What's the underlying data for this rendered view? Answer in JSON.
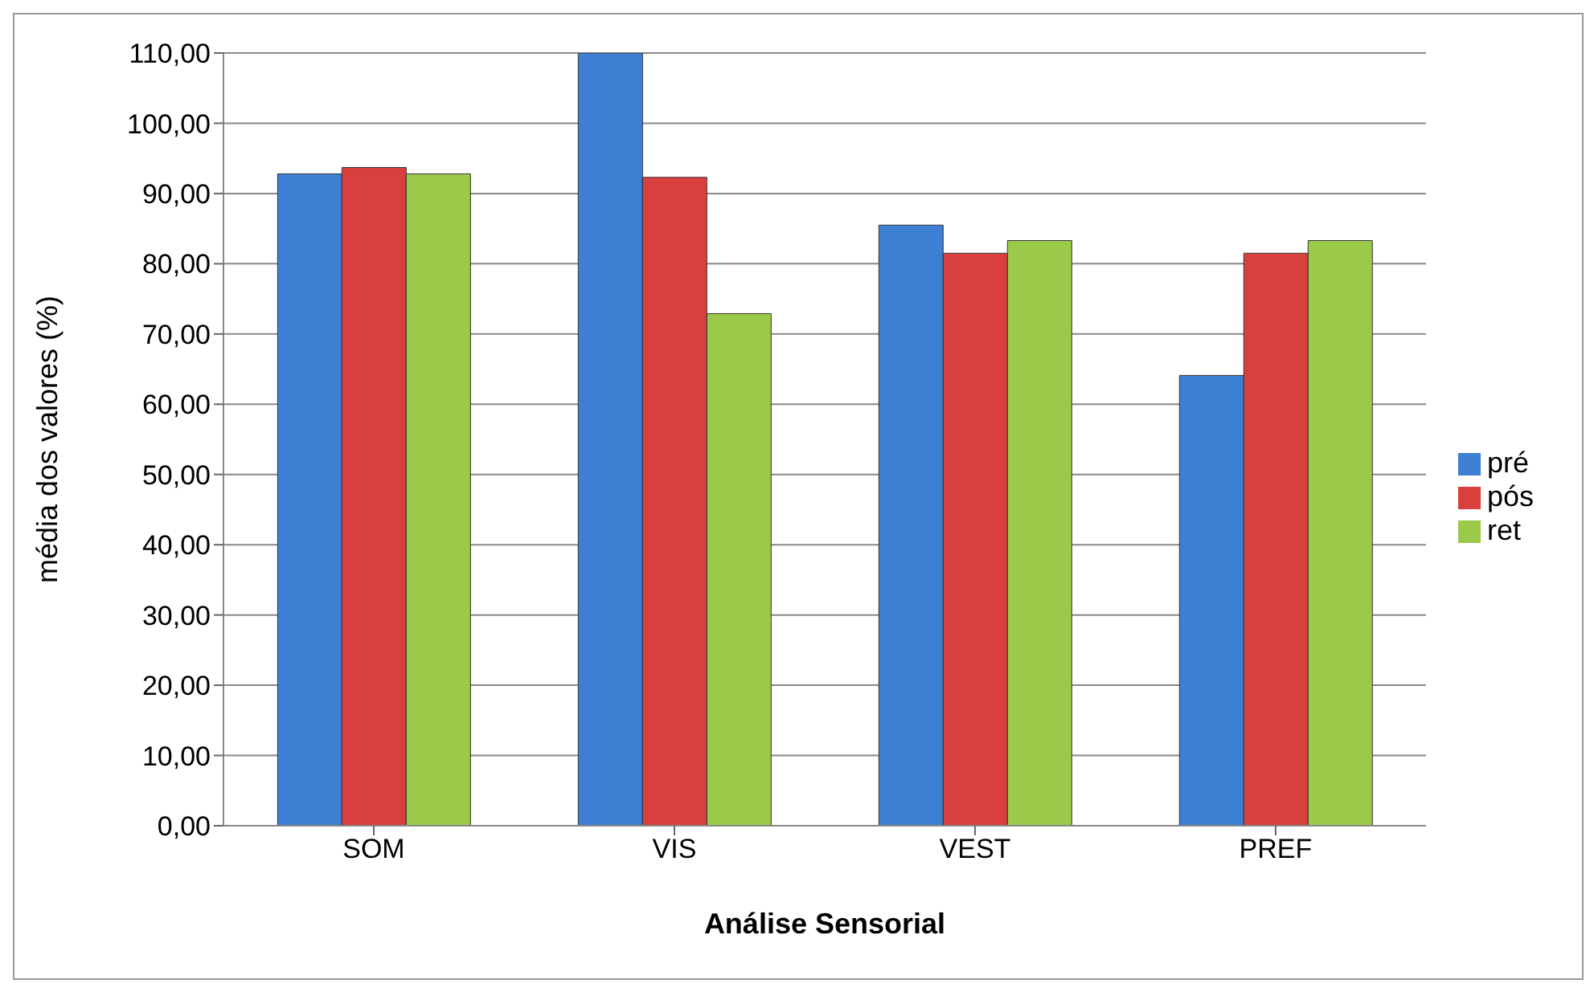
{
  "chart_data": {
    "type": "bar",
    "xlabel": "Análise Sensorial",
    "ylabel": "média dos valores (%)",
    "categories": [
      "SOM",
      "VIS",
      "VEST",
      "PREF"
    ],
    "series": [
      {
        "name": "pré",
        "color": "#3d7fd3",
        "values": [
          92.8,
          110,
          85.5,
          64.1
        ]
      },
      {
        "name": "pós",
        "color": "#d83f3d",
        "values": [
          93.7,
          92.3,
          81.5,
          81.5
        ]
      },
      {
        "name": "ret",
        "color": "#9bc94a",
        "values": [
          92.8,
          72.9,
          83.3,
          83.3
        ]
      }
    ],
    "ylim": [
      0,
      110
    ],
    "yticks": [
      {
        "value": 0,
        "label": "0,00"
      },
      {
        "value": 10,
        "label": "10,00"
      },
      {
        "value": 20,
        "label": "20,00"
      },
      {
        "value": 30,
        "label": "30,00"
      },
      {
        "value": 40,
        "label": "40,00"
      },
      {
        "value": 50,
        "label": "50,00"
      },
      {
        "value": 60,
        "label": "60,00"
      },
      {
        "value": 70,
        "label": "70,00"
      },
      {
        "value": 80,
        "label": "80,00"
      },
      {
        "value": 90,
        "label": "90,00"
      },
      {
        "value": 100,
        "label": "100,00"
      },
      {
        "value": 110,
        "label": "110,00"
      }
    ],
    "grid": "y",
    "legend": "right"
  }
}
